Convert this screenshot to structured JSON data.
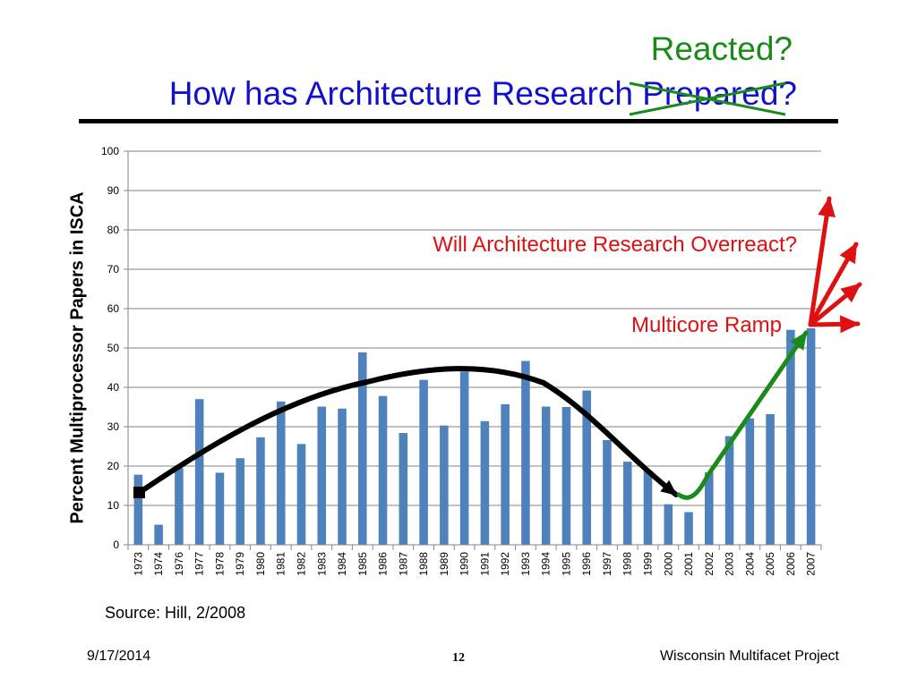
{
  "slide": {
    "title": "How has Architecture Research Prepared?",
    "correction": "Reacted?",
    "overreact": "Will Architecture Research Overreact?",
    "ramp": "Multicore Ramp",
    "source": "Source: Hill, 2/2008",
    "date": "9/17/2014",
    "page": "12",
    "project": "Wisconsin Multifacet Project"
  },
  "colors": {
    "bar": "#4f81bd",
    "title": "#1111cc",
    "annotation_red": "#dd1111",
    "annotation_green": "#1a8a1a",
    "trend_black": "#000000"
  },
  "chart_data": {
    "type": "bar",
    "title": "",
    "xlabel": "",
    "ylabel": "Percent Multiprocessor Papers in ISCA",
    "ylim": [
      0,
      100
    ],
    "yticks": [
      0,
      10,
      20,
      30,
      40,
      50,
      60,
      70,
      80,
      90,
      100
    ],
    "grid": true,
    "categories": [
      "1973",
      "1974",
      "1976",
      "1977",
      "1978",
      "1979",
      "1980",
      "1981",
      "1982",
      "1983",
      "1984",
      "1985",
      "1986",
      "1987",
      "1988",
      "1989",
      "1990",
      "1991",
      "1992",
      "1993",
      "1994",
      "1995",
      "1996",
      "1997",
      "1998",
      "1999",
      "2000",
      "2001",
      "2002",
      "2003",
      "2004",
      "2005",
      "2006",
      "2007"
    ],
    "series": [
      {
        "values": [
          17.8,
          5.1,
          19.5,
          37.0,
          18.3,
          22.0,
          27.3,
          36.4,
          25.6,
          35.1,
          34.6,
          48.9,
          37.8,
          28.4,
          41.9,
          30.3,
          44.0,
          31.4,
          35.7,
          46.7,
          35.1,
          35.0,
          39.2,
          26.6,
          21.1,
          18.8,
          10.3,
          8.3,
          18.4,
          27.6,
          32.1,
          33.2,
          54.6,
          55.0
        ]
      }
    ]
  }
}
